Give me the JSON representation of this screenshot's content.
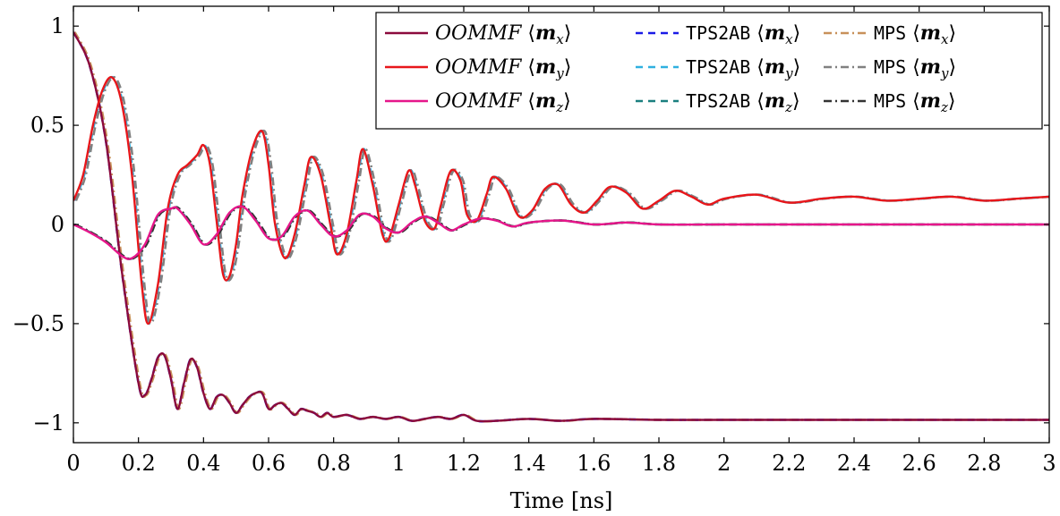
{
  "chart_data": {
    "type": "line",
    "xlabel": "Time [ns]",
    "ylabel": "",
    "xlim": [
      0,
      3
    ],
    "ylim": [
      -1.1,
      1.1
    ],
    "xticks": [
      0,
      0.2,
      0.4,
      0.6,
      0.8,
      1,
      1.2,
      1.4,
      1.6,
      1.8,
      2,
      2.2,
      2.4,
      2.6,
      2.8,
      3
    ],
    "xtick_labels": [
      "0",
      "0.2",
      "0.4",
      "0.6",
      "0.8",
      "1",
      "1.2",
      "1.4",
      "1.6",
      "1.8",
      "2",
      "2.2",
      "2.4",
      "2.6",
      "2.8",
      "3"
    ],
    "yticks": [
      -1,
      -0.5,
      0,
      0.5,
      1
    ],
    "ytick_labels": [
      "−1",
      "−0.5",
      "0",
      "0.5",
      "1"
    ],
    "grid": false,
    "legend_position": "top-right",
    "series": [
      {
        "name": "OOMMF ⟨m_x⟩",
        "legend": {
          "prefix": "OOMMF",
          "component": "x"
        },
        "color": "#8b0a3c",
        "dash": "solid",
        "group": "mx",
        "x": [
          0,
          0.05,
          0.1,
          0.15,
          0.2,
          0.22,
          0.24,
          0.26,
          0.28,
          0.3,
          0.32,
          0.34,
          0.36,
          0.38,
          0.4,
          0.42,
          0.44,
          0.46,
          0.48,
          0.5,
          0.52,
          0.54,
          0.56,
          0.58,
          0.6,
          0.62,
          0.64,
          0.66,
          0.68,
          0.7,
          0.72,
          0.74,
          0.76,
          0.78,
          0.8,
          0.84,
          0.88,
          0.92,
          0.96,
          1,
          1.04,
          1.08,
          1.12,
          1.16,
          1.2,
          1.24,
          1.3,
          1.4,
          1.5,
          1.6,
          1.8,
          2,
          2.5,
          3
        ],
        "y": [
          0.97,
          0.8,
          0.42,
          -0.25,
          -0.8,
          -0.86,
          -0.78,
          -0.67,
          -0.66,
          -0.78,
          -0.93,
          -0.8,
          -0.68,
          -0.72,
          -0.85,
          -0.93,
          -0.87,
          -0.86,
          -0.9,
          -0.95,
          -0.91,
          -0.87,
          -0.85,
          -0.85,
          -0.93,
          -0.91,
          -0.9,
          -0.93,
          -0.96,
          -0.93,
          -0.94,
          -0.95,
          -0.97,
          -0.95,
          -0.97,
          -0.96,
          -0.98,
          -0.97,
          -0.98,
          -0.97,
          -0.99,
          -0.98,
          -0.97,
          -0.98,
          -0.96,
          -0.99,
          -0.99,
          -0.98,
          -0.99,
          -0.98,
          -0.985,
          -0.985,
          -0.985,
          -0.985
        ]
      },
      {
        "name": "OOMMF ⟨m_y⟩",
        "legend": {
          "prefix": "OOMMF",
          "component": "y"
        },
        "color": "#e8161a",
        "dash": "solid",
        "group": "my",
        "x": [
          0,
          0.03,
          0.06,
          0.09,
          0.12,
          0.15,
          0.18,
          0.21,
          0.23,
          0.26,
          0.29,
          0.32,
          0.35,
          0.38,
          0.4,
          0.42,
          0.44,
          0.46,
          0.48,
          0.5,
          0.52,
          0.55,
          0.58,
          0.6,
          0.62,
          0.65,
          0.68,
          0.71,
          0.73,
          0.76,
          0.79,
          0.81,
          0.84,
          0.87,
          0.89,
          0.92,
          0.95,
          0.97,
          1,
          1.03,
          1.05,
          1.08,
          1.11,
          1.13,
          1.16,
          1.19,
          1.21,
          1.24,
          1.27,
          1.29,
          1.33,
          1.37,
          1.41,
          1.45,
          1.49,
          1.53,
          1.57,
          1.61,
          1.65,
          1.7,
          1.75,
          1.8,
          1.85,
          1.9,
          1.95,
          2,
          2.1,
          2.2,
          2.3,
          2.4,
          2.5,
          2.6,
          2.7,
          2.8,
          2.9,
          3
        ],
        "y": [
          0.12,
          0.25,
          0.5,
          0.68,
          0.74,
          0.6,
          0.25,
          -0.3,
          -0.5,
          -0.3,
          0.08,
          0.25,
          0.3,
          0.35,
          0.4,
          0.3,
          0.02,
          -0.25,
          -0.26,
          -0.1,
          0.15,
          0.38,
          0.47,
          0.3,
          0,
          -0.17,
          -0.05,
          0.2,
          0.34,
          0.25,
          0,
          -0.15,
          -0.05,
          0.22,
          0.38,
          0.2,
          -0.05,
          -0.07,
          0.1,
          0.27,
          0.2,
          0.02,
          -0.02,
          0.1,
          0.27,
          0.22,
          0.05,
          0.02,
          0.15,
          0.24,
          0.18,
          0.04,
          0.07,
          0.18,
          0.2,
          0.1,
          0.06,
          0.12,
          0.19,
          0.16,
          0.08,
          0.12,
          0.17,
          0.14,
          0.1,
          0.13,
          0.15,
          0.11,
          0.13,
          0.14,
          0.12,
          0.13,
          0.14,
          0.12,
          0.13,
          0.14
        ]
      },
      {
        "name": "OOMMF ⟨m_z⟩",
        "legend": {
          "prefix": "OOMMF",
          "component": "z"
        },
        "color": "#e6168a",
        "dash": "solid",
        "group": "mz",
        "x": [
          0,
          0.05,
          0.1,
          0.15,
          0.18,
          0.22,
          0.26,
          0.3,
          0.32,
          0.36,
          0.4,
          0.44,
          0.48,
          0.52,
          0.56,
          0.6,
          0.64,
          0.68,
          0.72,
          0.76,
          0.8,
          0.84,
          0.88,
          0.92,
          0.96,
          1,
          1.04,
          1.08,
          1.12,
          1.16,
          1.2,
          1.25,
          1.3,
          1.35,
          1.4,
          1.5,
          1.6,
          1.7,
          1.8,
          2,
          2.2,
          2.5,
          3
        ],
        "y": [
          0,
          -0.04,
          -0.09,
          -0.16,
          -0.17,
          -0.1,
          0.05,
          0.08,
          0.08,
          0.0,
          -0.1,
          -0.05,
          0.06,
          0.09,
          0.02,
          -0.07,
          -0.06,
          0.04,
          0.07,
          0.0,
          -0.06,
          -0.03,
          0.05,
          0.04,
          -0.02,
          -0.04,
          0.01,
          0.04,
          0.01,
          -0.03,
          0.0,
          0.03,
          0.02,
          -0.01,
          0.01,
          0.02,
          0.0,
          0.01,
          0.0,
          0.0,
          0.0,
          0.0,
          0.0
        ]
      },
      {
        "name": "TPS2AB ⟨m_x⟩",
        "legend": {
          "prefix": "TPS2AB",
          "component": "x"
        },
        "color": "#1a1ae6",
        "dash": "8,6",
        "group": "mx",
        "offset": [
          0,
          0
        ]
      },
      {
        "name": "TPS2AB ⟨m_y⟩",
        "legend": {
          "prefix": "TPS2AB",
          "component": "y"
        },
        "color": "#2fb0e0",
        "dash": "8,6",
        "group": "my",
        "offset": [
          0.003,
          0
        ]
      },
      {
        "name": "TPS2AB ⟨m_z⟩",
        "legend": {
          "prefix": "TPS2AB",
          "component": "z"
        },
        "color": "#1a7f7f",
        "dash": "8,6",
        "group": "mz",
        "offset": [
          0.002,
          0
        ]
      },
      {
        "name": "MPS ⟨m_x⟩",
        "legend": {
          "prefix": "MPS",
          "component": "x"
        },
        "color": "#c8915a",
        "dash": "9,4,2,4",
        "group": "mx",
        "offset": [
          0.004,
          0
        ]
      },
      {
        "name": "MPS ⟨m_y⟩",
        "legend": {
          "prefix": "MPS",
          "component": "y"
        },
        "color": "#808080",
        "dash": "9,4,2,4",
        "group": "my",
        "offset": [
          0.008,
          0
        ]
      },
      {
        "name": "MPS ⟨m_z⟩",
        "legend": {
          "prefix": "MPS",
          "component": "z"
        },
        "color": "#333333",
        "dash": "9,4,2,4",
        "group": "mz",
        "offset": [
          0.005,
          0
        ]
      }
    ]
  }
}
